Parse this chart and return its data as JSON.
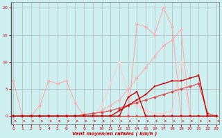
{
  "bg_color": "#cef0f0",
  "grid_color": "#aaaaaa",
  "x_ticks": [
    0,
    1,
    2,
    3,
    4,
    5,
    6,
    7,
    8,
    9,
    10,
    11,
    12,
    13,
    14,
    15,
    16,
    17,
    18,
    19,
    20,
    21,
    22,
    23
  ],
  "xlabel": "Vent moyen/en rafales ( km/h )",
  "ylabel_ticks": [
    0,
    5,
    10,
    15,
    20
  ],
  "lines": [
    {
      "x": [
        0,
        1,
        2,
        3,
        4,
        5,
        6,
        7,
        8,
        9,
        10,
        11,
        12,
        13,
        14,
        15,
        16,
        17,
        18,
        19,
        20,
        21,
        22,
        23
      ],
      "y": [
        6.5,
        0,
        0,
        2,
        6.5,
        6,
        6.5,
        2.5,
        0,
        0,
        0,
        0,
        0,
        0,
        0,
        0,
        0,
        0,
        0,
        0,
        0,
        0,
        0,
        0
      ],
      "color": "#ffaaaa",
      "marker": "D",
      "markersize": 2,
      "linewidth": 0.8,
      "zorder": 2
    },
    {
      "x": [
        0,
        1,
        2,
        3,
        4,
        5,
        6,
        7,
        8,
        9,
        10,
        11,
        12,
        13,
        14,
        15,
        16,
        17,
        18,
        19,
        20,
        21,
        22,
        23
      ],
      "y": [
        0,
        0,
        0,
        0,
        0,
        0,
        0,
        0,
        0,
        0,
        1,
        2,
        3,
        5,
        7,
        9,
        11,
        13,
        14,
        16,
        0,
        0,
        0,
        0
      ],
      "color": "#ffaaaa",
      "marker": "D",
      "markersize": 2,
      "linewidth": 0.8,
      "zorder": 2
    },
    {
      "x": [
        0,
        1,
        2,
        3,
        4,
        5,
        6,
        7,
        8,
        9,
        10,
        11,
        12,
        13,
        14,
        15,
        16,
        17,
        18,
        19,
        20,
        21,
        22,
        23
      ],
      "y": [
        0,
        0,
        0,
        0,
        0,
        0,
        0,
        0,
        0,
        0,
        0,
        0,
        0,
        0,
        17,
        16.5,
        15,
        20,
        16.5,
        0,
        0,
        0,
        0,
        0
      ],
      "color": "#ffaaaa",
      "marker": "D",
      "markersize": 2,
      "linewidth": 0.8,
      "zorder": 2
    },
    {
      "x": [
        0,
        1,
        2,
        3,
        4,
        5,
        6,
        7,
        8,
        9,
        10,
        11,
        12,
        13,
        14,
        15,
        16,
        17,
        18,
        19,
        20,
        21,
        22,
        23
      ],
      "y": [
        0,
        0,
        0,
        0,
        0,
        0,
        0,
        0,
        0,
        0,
        2,
        6,
        10,
        4,
        2,
        1,
        0.5,
        0.5,
        1,
        10,
        0,
        0,
        0,
        0
      ],
      "color": "#ffcccc",
      "marker": "D",
      "markersize": 2,
      "linewidth": 0.8,
      "zorder": 2
    },
    {
      "x": [
        0,
        1,
        2,
        3,
        4,
        5,
        6,
        7,
        8,
        9,
        10,
        11,
        12,
        13,
        14,
        15,
        16,
        17,
        18,
        19,
        20,
        21,
        22,
        23
      ],
      "y": [
        0,
        0,
        0,
        0,
        0,
        0,
        0,
        0,
        0,
        0,
        0,
        0,
        1,
        2,
        3,
        4,
        5.5,
        6,
        6.5,
        6.5,
        7,
        7.5,
        0,
        0
      ],
      "color": "#cc0000",
      "marker": "s",
      "markersize": 2,
      "linewidth": 1.0,
      "zorder": 4
    },
    {
      "x": [
        0,
        1,
        2,
        3,
        4,
        5,
        6,
        7,
        8,
        9,
        10,
        11,
        12,
        13,
        14,
        15,
        16,
        17,
        18,
        19,
        20,
        21,
        22,
        23
      ],
      "y": [
        0,
        0,
        0,
        0,
        0,
        0,
        0,
        0,
        0,
        0,
        0,
        0,
        0,
        3.5,
        4.5,
        0,
        0,
        0,
        0,
        0,
        0,
        0,
        0,
        0
      ],
      "color": "#cc0000",
      "marker": "s",
      "markersize": 2,
      "linewidth": 1.0,
      "zorder": 4
    },
    {
      "x": [
        0,
        1,
        2,
        3,
        4,
        5,
        6,
        7,
        8,
        9,
        10,
        11,
        12,
        13,
        14,
        15,
        16,
        17,
        18,
        19,
        20,
        21,
        22,
        23
      ],
      "y": [
        0,
        0,
        0,
        0,
        0,
        0,
        0,
        0,
        0,
        0,
        0,
        0,
        0,
        0,
        0,
        0,
        0,
        0,
        0,
        0,
        0,
        0,
        0,
        0
      ],
      "color": "#dd3333",
      "marker": "s",
      "markersize": 2,
      "linewidth": 0.8,
      "zorder": 3
    },
    {
      "x": [
        0,
        1,
        2,
        3,
        4,
        5,
        6,
        7,
        8,
        9,
        10,
        11,
        12,
        13,
        14,
        15,
        16,
        17,
        18,
        19,
        20,
        21,
        22,
        23
      ],
      "y": [
        0,
        0,
        0,
        0,
        0,
        0,
        0,
        0,
        0.3,
        0.5,
        0.7,
        1,
        1.5,
        2,
        2.5,
        3,
        3.5,
        4,
        4.5,
        5,
        5.5,
        6,
        0.5,
        0
      ],
      "color": "#dd4444",
      "marker": "D",
      "markersize": 2,
      "linewidth": 0.8,
      "zorder": 3
    }
  ],
  "ylim": [
    -1.5,
    21
  ],
  "xlim": [
    -0.3,
    23.3
  ]
}
